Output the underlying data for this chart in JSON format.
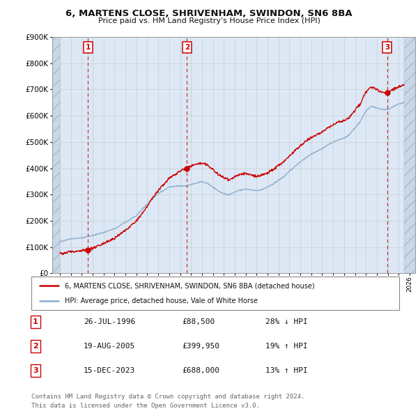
{
  "title_line1": "6, MARTENS CLOSE, SHRIVENHAM, SWINDON, SN6 8BA",
  "title_line2": "Price paid vs. HM Land Registry's House Price Index (HPI)",
  "ylim": [
    0,
    900000
  ],
  "yticks": [
    0,
    100000,
    200000,
    300000,
    400000,
    500000,
    600000,
    700000,
    800000,
    900000
  ],
  "ytick_labels": [
    "£0",
    "£100K",
    "£200K",
    "£300K",
    "£400K",
    "£500K",
    "£600K",
    "£700K",
    "£800K",
    "£900K"
  ],
  "xlim_start": 1993.3,
  "xlim_end": 2026.5,
  "sale_dates": [
    1996.57,
    2005.63,
    2023.96
  ],
  "sale_prices": [
    88500,
    399950,
    688000
  ],
  "sale_labels": [
    "1",
    "2",
    "3"
  ],
  "red_line_color": "#cc0000",
  "blue_line_color": "#88aacc",
  "dot_color": "#cc0000",
  "dashed_line_color": "#cc3333",
  "grid_color": "#cccccc",
  "legend_label_red": "6, MARTENS CLOSE, SHRIVENHAM, SWINDON, SN6 8BA (detached house)",
  "legend_label_blue": "HPI: Average price, detached house, Vale of White Horse",
  "table_data": [
    {
      "num": "1",
      "date": "26-JUL-1996",
      "price": "£88,500",
      "hpi": "28% ↓ HPI"
    },
    {
      "num": "2",
      "date": "19-AUG-2005",
      "price": "£399,950",
      "hpi": "19% ↑ HPI"
    },
    {
      "num": "3",
      "date": "15-DEC-2023",
      "price": "£688,000",
      "hpi": "13% ↑ HPI"
    }
  ],
  "footnote": "Contains HM Land Registry data © Crown copyright and database right 2024.\nThis data is licensed under the Open Government Licence v3.0.",
  "bg_color": "#ffffff",
  "plot_bg_color": "#dce8f5"
}
